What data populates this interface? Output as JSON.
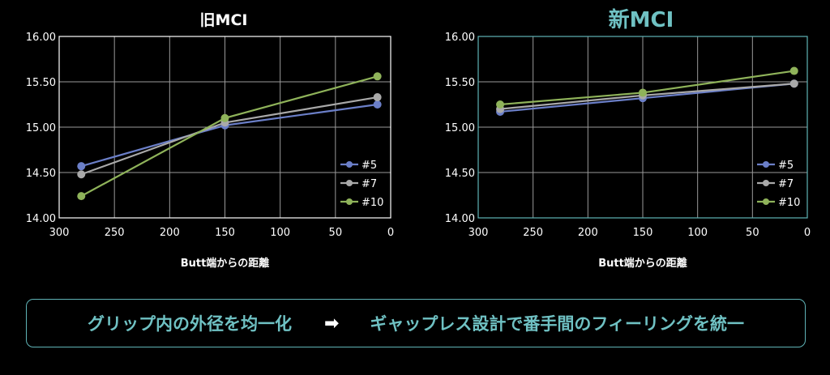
{
  "charts": {
    "left_title": "旧MCI",
    "right_title": "新MCI"
  },
  "colors": {
    "left_border": "#ffffff",
    "right_border": "#5fb3b6",
    "right_title": "#6fc1c3",
    "grid": "#9a9a9a"
  },
  "chart_data": [
    {
      "type": "line",
      "title": "旧MCI",
      "xlabel": "Butt端からの距離",
      "ylabel": "",
      "xlim": [
        300,
        0
      ],
      "ylim": [
        14.0,
        16.0
      ],
      "x_ticks": [
        "300",
        "250",
        "200",
        "150",
        "100",
        "50",
        "0"
      ],
      "y_ticks": [
        "16.00",
        "15.50",
        "15.00",
        "14.50",
        "14.00"
      ],
      "grid": true,
      "legend_position": "bottom-right",
      "x": [
        280,
        150,
        12
      ],
      "series": [
        {
          "name": "#5",
          "color": "#6b7fc8",
          "values": [
            14.57,
            15.02,
            15.25
          ]
        },
        {
          "name": "#7",
          "color": "#a9a9a9",
          "values": [
            14.48,
            15.05,
            15.33
          ]
        },
        {
          "name": "#10",
          "color": "#8fb35a",
          "values": [
            14.24,
            15.1,
            15.56
          ]
        }
      ]
    },
    {
      "type": "line",
      "title": "新MCI",
      "xlabel": "Butt端からの距離",
      "ylabel": "",
      "xlim": [
        300,
        0
      ],
      "ylim": [
        14.0,
        16.0
      ],
      "x_ticks": [
        "300",
        "250",
        "200",
        "150",
        "100",
        "50",
        "0"
      ],
      "y_ticks": [
        "16.00",
        "15.50",
        "15.00",
        "14.50",
        "14.00"
      ],
      "grid": true,
      "legend_position": "bottom-right",
      "x": [
        280,
        150,
        12
      ],
      "series": [
        {
          "name": "#5",
          "color": "#6b7fc8",
          "values": [
            15.17,
            15.32,
            15.48
          ]
        },
        {
          "name": "#7",
          "color": "#a9a9a9",
          "values": [
            15.2,
            15.35,
            15.48
          ]
        },
        {
          "name": "#10",
          "color": "#8fb35a",
          "values": [
            15.25,
            15.38,
            15.62
          ]
        }
      ]
    }
  ],
  "banner": {
    "left_text": "グリップ内の外径を均一化",
    "arrow": "➡",
    "right_text": "ギャップレス設計で番手間のフィーリングを統一"
  }
}
